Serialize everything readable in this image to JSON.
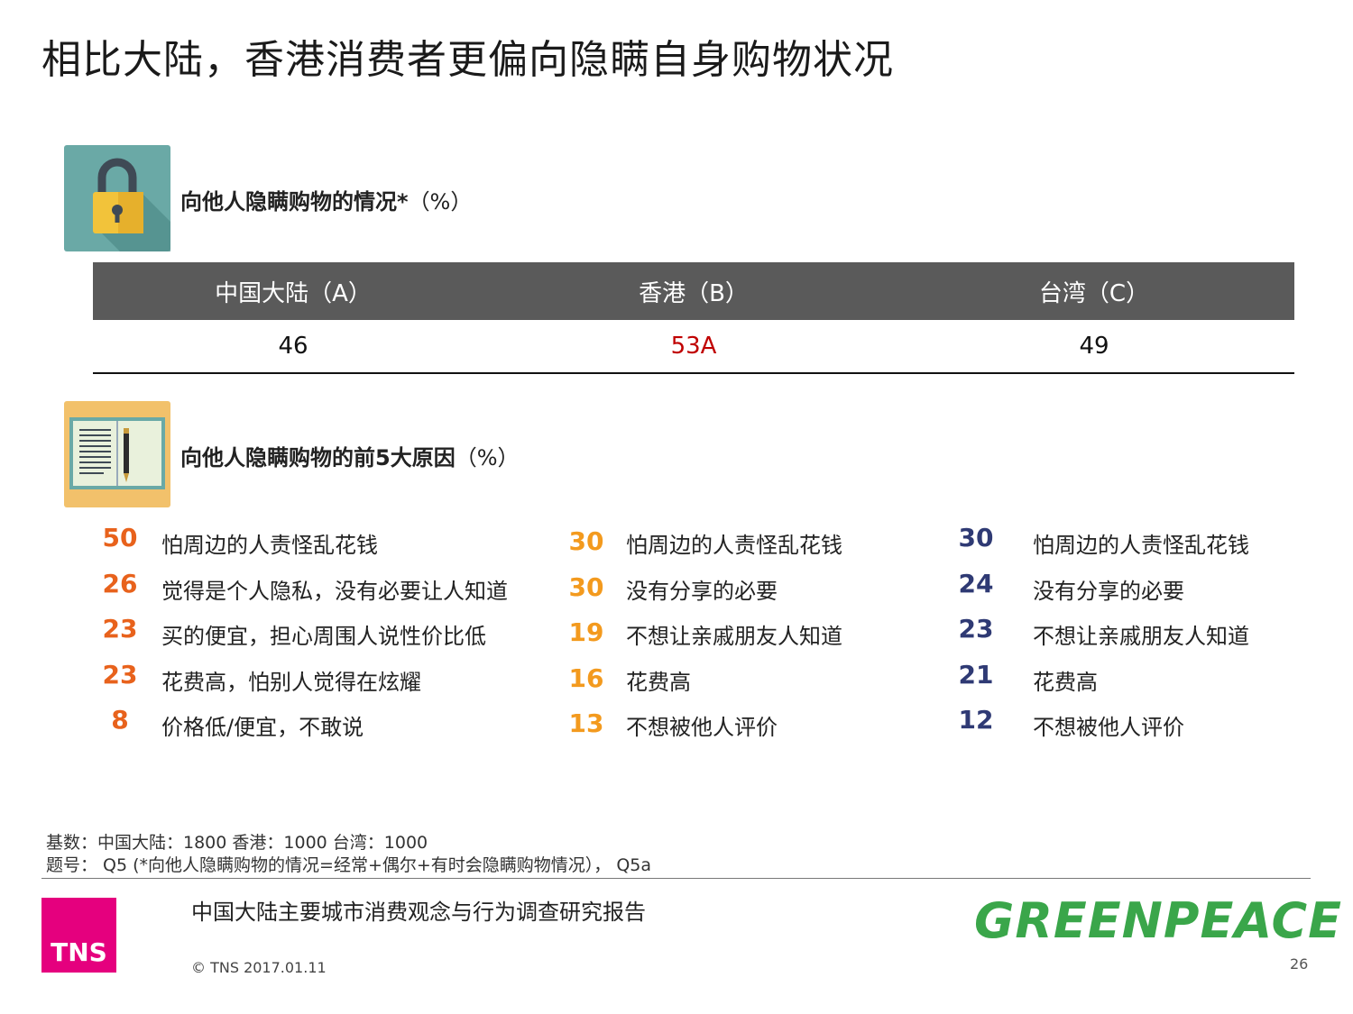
{
  "title": "相比大陆，香港消费者更偏向隐瞒自身购物状况",
  "section1": {
    "heading": "向他人隐瞒购物的情况*",
    "unit": "（%）",
    "icon": "lock-icon",
    "icon_color": "#6aa9a6",
    "columns": [
      "中国大陆（A）",
      "香港（B）",
      "台湾（C）"
    ],
    "values": [
      "46",
      "53A",
      "49"
    ],
    "highlight_color": "#c00000"
  },
  "section2": {
    "heading": "向他人隐瞒购物的前5大原因",
    "unit": "（%）",
    "icon": "notebook-pen-icon",
    "icon_color": "#f2c16b",
    "mainland": [
      {
        "value": "50",
        "text": "怕周边的人责怪乱花钱"
      },
      {
        "value": "26",
        "text": "觉得是个人隐私，没有必要让人知道"
      },
      {
        "value": "23",
        "text": "买的便宜，担心周围人说性价比低"
      },
      {
        "value": "23",
        "text": "花费高，怕别人觉得在炫耀"
      },
      {
        "value": "8",
        "text": "价格低/便宜，不敢说"
      }
    ],
    "hongkong": [
      {
        "value": "30",
        "text": "怕周边的人责怪乱花钱"
      },
      {
        "value": "30",
        "text": "没有分享的必要"
      },
      {
        "value": "19",
        "text": "不想让亲戚朋友人知道"
      },
      {
        "value": "16",
        "text": "花费高"
      },
      {
        "value": "13",
        "text": "不想被他人评价"
      }
    ],
    "taiwan": [
      {
        "value": "30",
        "text": "怕周边的人责怪乱花钱"
      },
      {
        "value": "24",
        "text": "没有分享的必要"
      },
      {
        "value": "23",
        "text": "不想让亲戚朋友人知道"
      },
      {
        "value": "21",
        "text": "花费高"
      },
      {
        "value": "12",
        "text": "不想被他人评价"
      }
    ],
    "colors": {
      "mainland": "#e8621c",
      "hongkong": "#f39a1e",
      "taiwan": "#2f3a74"
    }
  },
  "footnotes": {
    "base": "基数：中国大陆：1800 香港：1000 台湾：1000",
    "question": "题号： Q5 (*向他人隐瞒购物的情况=经常+偶尔+有时会隐瞒购物情况）， Q5a"
  },
  "footer": {
    "tns_logo": "TNS",
    "report_title": "中国大陆主要城市消费观念与行为调查研究报告",
    "copyright": "© TNS 2017.01.11",
    "greenpeace_logo": "GREENPEACE",
    "page_number": "26"
  }
}
